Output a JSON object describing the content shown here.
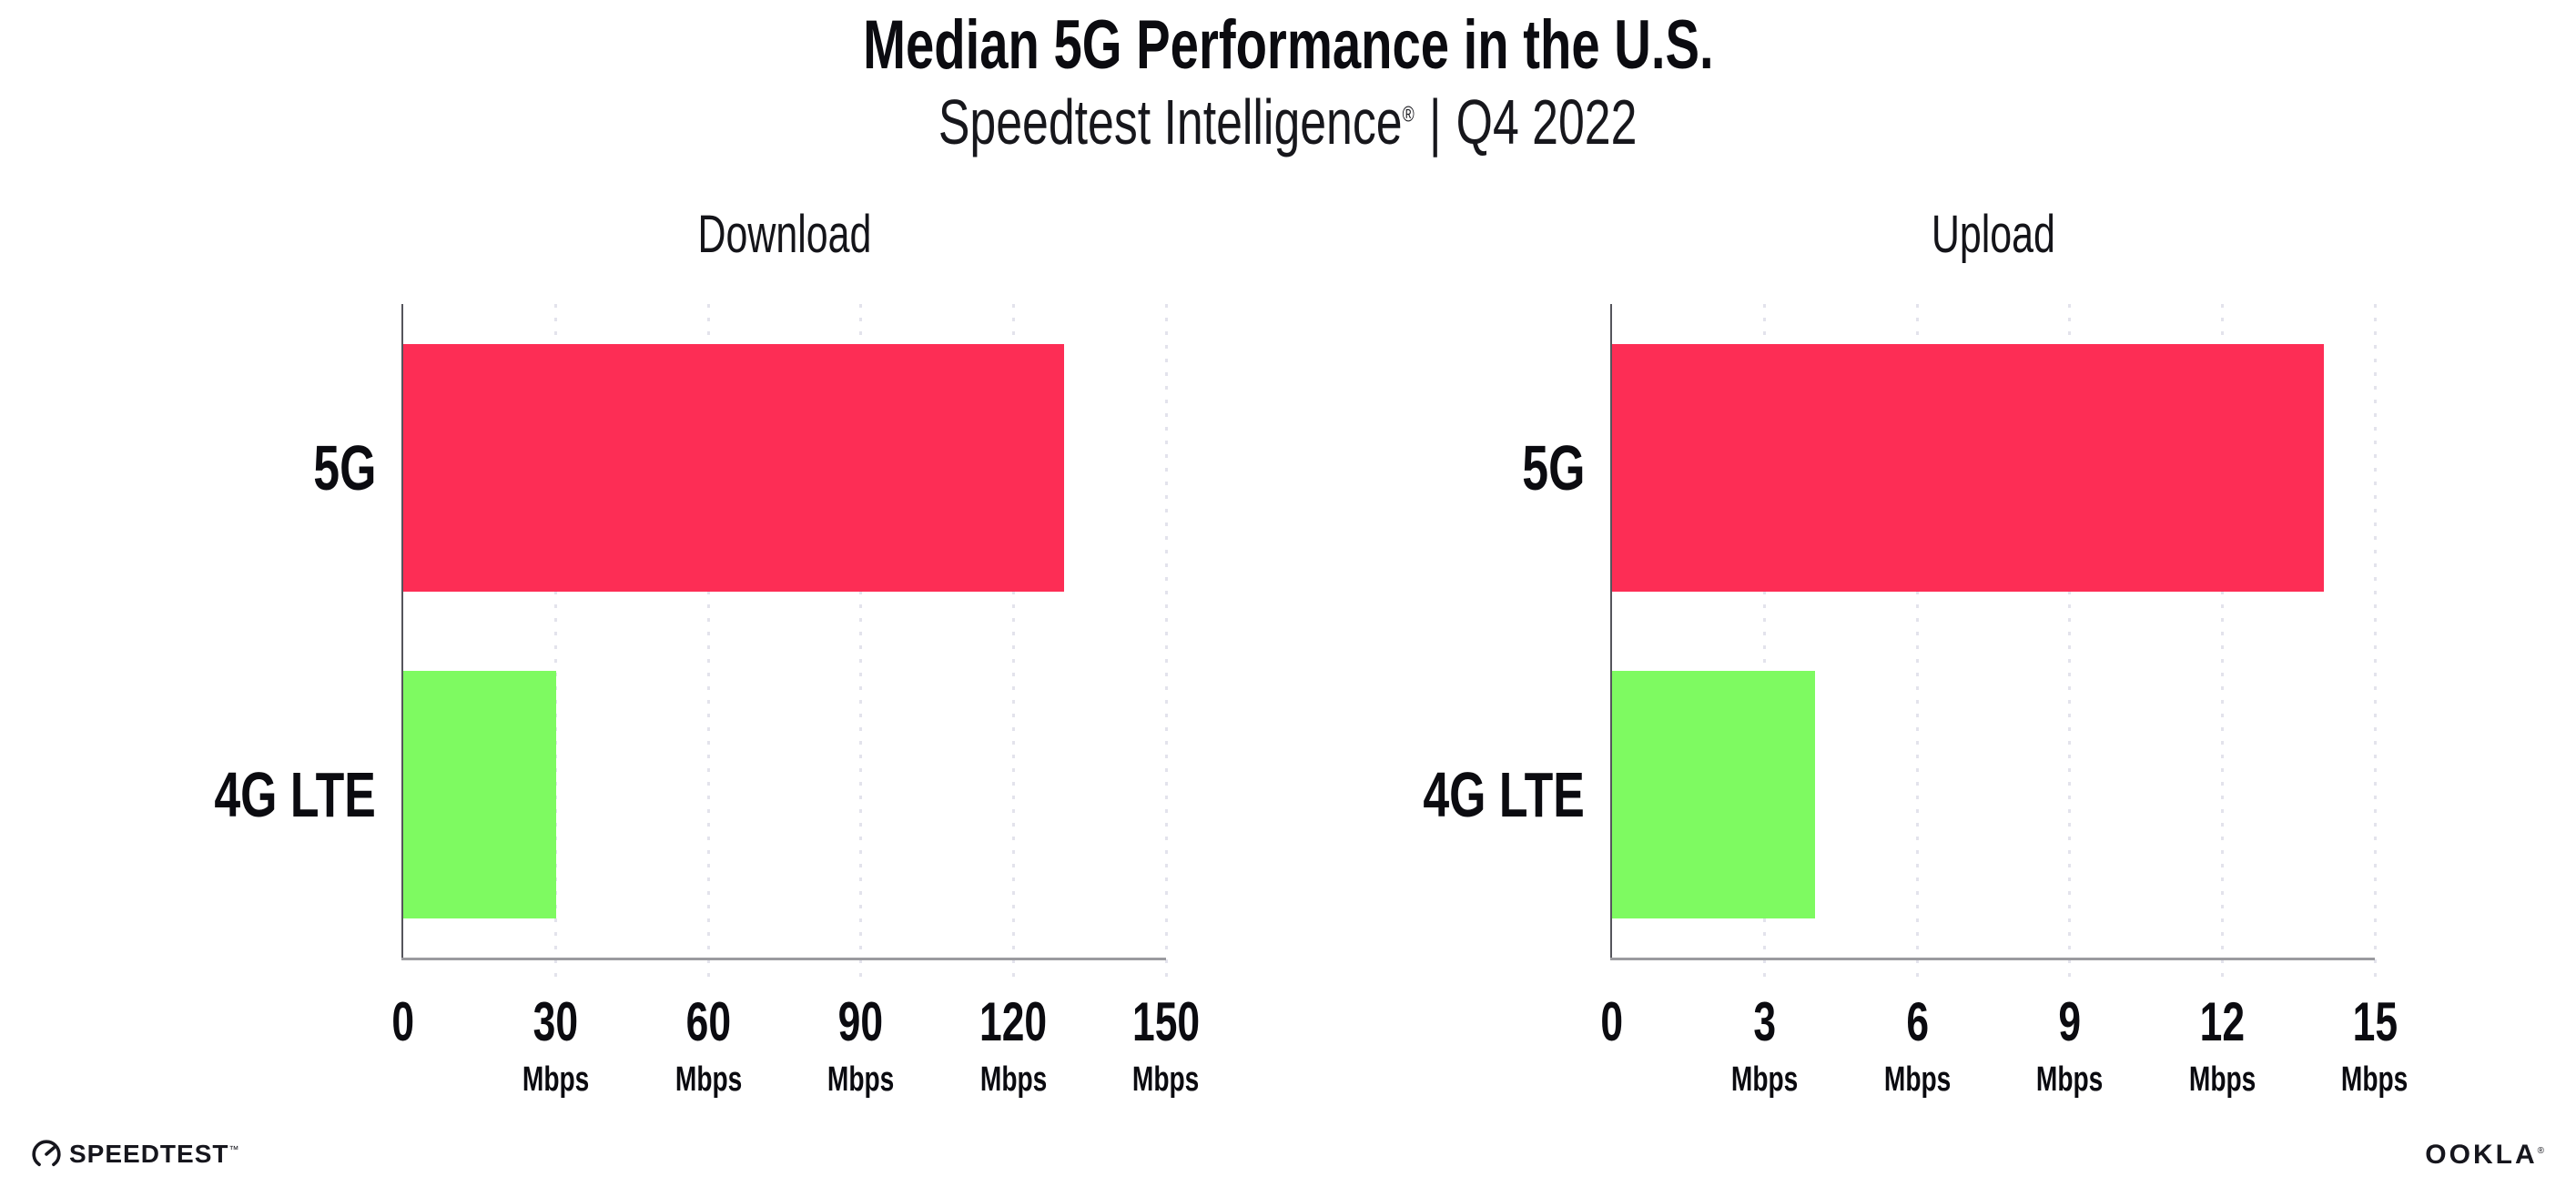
{
  "header": {
    "title": "Median 5G Performance in the U.S.",
    "subtitle": {
      "brand": "Speedtest Intelligence",
      "reg": "®",
      "sep": "|",
      "period": "Q4 2022"
    }
  },
  "footer": {
    "speedtest_label": "SPEEDTEST",
    "speedtest_tm": "™",
    "speedtest_icon": "speedtest-gauge-icon",
    "ookla_label": "OOKLA",
    "ookla_reg": "®"
  },
  "colors": {
    "bar_5g_pink": "#FD2D55",
    "bar_4g_green": "#7EFA61",
    "gridline": "#E3E3EC",
    "x_axis": "#9B9B9F",
    "y_axis": "#55555C",
    "text": "#0B0B10",
    "background": "#FFFFFF"
  },
  "chart_data": [
    {
      "type": "bar",
      "orientation": "horizontal",
      "title": "Download",
      "categories": [
        "5G",
        "4G LTE"
      ],
      "values": [
        130,
        30
      ],
      "unit": "Mbps",
      "xlim": [
        0,
        150
      ],
      "ticks": [
        0,
        30,
        60,
        90,
        120,
        150
      ],
      "tick_unit_label": "Mbps",
      "grid": "vertical-dotted",
      "legend": "none",
      "bar_colors": [
        "#FD2D55",
        "#7EFA61"
      ]
    },
    {
      "type": "bar",
      "orientation": "horizontal",
      "title": "Upload",
      "categories": [
        "5G",
        "4G LTE"
      ],
      "values": [
        14,
        4
      ],
      "unit": "Mbps",
      "xlim": [
        0,
        15
      ],
      "ticks": [
        0,
        3,
        6,
        9,
        12,
        15
      ],
      "tick_unit_label": "Mbps",
      "grid": "vertical-dotted",
      "legend": "none",
      "bar_colors": [
        "#FD2D55",
        "#7EFA61"
      ]
    }
  ]
}
